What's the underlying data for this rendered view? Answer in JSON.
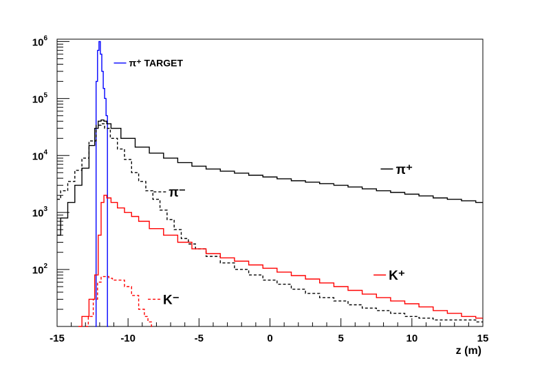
{
  "chart_data": {
    "type": "line",
    "title": "",
    "xlabel": "z (m)",
    "ylabel": "",
    "xlim": [
      -15,
      15
    ],
    "ylim": [
      10,
      1100000
    ],
    "yscale": "log",
    "grid": false,
    "x_ticks": [
      "-15",
      "-10",
      "-5",
      "0",
      "5",
      "10",
      "15"
    ],
    "y_ticks": [
      {
        "base": "10",
        "exp": "2"
      },
      {
        "base": "10",
        "exp": "3"
      },
      {
        "base": "10",
        "exp": "4"
      },
      {
        "base": "10",
        "exp": "5"
      },
      {
        "base": "10",
        "exp": "6"
      }
    ],
    "series": [
      {
        "name": "π⁺ TARGET",
        "color": "#0000ff",
        "style": "solid",
        "x": [
          -12.3,
          -12.2,
          -12.1,
          -12.0,
          -11.9,
          -11.8,
          -11.7,
          -11.6,
          -11.5,
          -11.4
        ],
        "y": [
          10,
          200000,
          700000,
          1000000,
          600000,
          300000,
          150000,
          100000,
          50000,
          10
        ]
      },
      {
        "name": "π⁺",
        "color": "#000000",
        "style": "solid",
        "x": [
          -15,
          -14.5,
          -14,
          -13.5,
          -13,
          -12.5,
          -12.2,
          -12,
          -11.8,
          -11.6,
          -11.4,
          -11,
          -10,
          -9,
          -8,
          -7,
          -6,
          -5,
          -4,
          -3,
          -2,
          -1,
          0,
          1,
          2,
          3,
          4,
          5,
          6,
          7,
          8,
          9,
          10,
          11,
          12,
          13,
          14,
          15
        ],
        "y": [
          400,
          800,
          1500,
          3000,
          6000,
          15000,
          30000,
          40000,
          42000,
          40000,
          36000,
          30000,
          20000,
          14000,
          11000,
          9000,
          7500,
          6500,
          5800,
          5300,
          4900,
          4500,
          4200,
          3900,
          3600,
          3400,
          3200,
          3000,
          2800,
          2600,
          2400,
          2250,
          2100,
          1950,
          1800,
          1700,
          1600,
          1500
        ]
      },
      {
        "name": "π⁻",
        "color": "#000000",
        "style": "dashed",
        "x": [
          -15,
          -14.5,
          -14,
          -13.5,
          -13,
          -12.5,
          -12,
          -11.8,
          -11.5,
          -11,
          -10.5,
          -10,
          -9.5,
          -9,
          -8.5,
          -8,
          -7.5,
          -7,
          -6.5,
          -6,
          -5.5,
          -5,
          -4,
          -3,
          -2,
          -1,
          0,
          1,
          2,
          3,
          4,
          5,
          6,
          7,
          8,
          9,
          10,
          11,
          12,
          13,
          14,
          15
        ],
        "y": [
          1700,
          2400,
          3500,
          5500,
          9000,
          18000,
          34000,
          36000,
          30000,
          20000,
          13000,
          8500,
          5000,
          3500,
          2400,
          1700,
          1100,
          750,
          500,
          350,
          280,
          230,
          170,
          130,
          100,
          80,
          65,
          55,
          45,
          38,
          32,
          28,
          24,
          21,
          19,
          17,
          15,
          14,
          13,
          13,
          13,
          12
        ]
      },
      {
        "name": "K⁺",
        "color": "#ff0000",
        "style": "solid",
        "x": [
          -13.5,
          -13,
          -12.5,
          -12.2,
          -12,
          -11.8,
          -11.6,
          -11.4,
          -11,
          -10.5,
          -10,
          -9.5,
          -9,
          -8,
          -7,
          -6,
          -5,
          -4,
          -3,
          -2,
          -1,
          0,
          1,
          2,
          3,
          4,
          5,
          6,
          7,
          8,
          9,
          10,
          11,
          12,
          13,
          14,
          15
        ],
        "y": [
          10,
          15,
          30,
          80,
          400,
          1500,
          2000,
          1800,
          1500,
          1200,
          1000,
          850,
          700,
          520,
          400,
          300,
          230,
          190,
          160,
          140,
          120,
          105,
          90,
          78,
          68,
          58,
          50,
          43,
          37,
          32,
          28,
          25,
          22,
          19,
          17,
          15,
          14
        ]
      },
      {
        "name": "K⁻",
        "color": "#ff0000",
        "style": "dashed",
        "x": [
          -13,
          -12.6,
          -12.3,
          -12,
          -11.8,
          -11.5,
          -11.2,
          -11,
          -10.5,
          -10,
          -9.5,
          -9,
          -8.7,
          -8.5,
          -8.2
        ],
        "y": [
          10,
          15,
          30,
          60,
          75,
          75,
          70,
          65,
          65,
          50,
          35,
          20,
          15,
          12,
          10
        ]
      }
    ],
    "legend": [
      {
        "label": "π⁺ TARGET",
        "color": "#0000ff",
        "style": "solid",
        "x": -11.0,
        "y": 420000
      },
      {
        "label": "π⁺",
        "color": "#000000",
        "style": "solid",
        "x": 7.8,
        "y": 5800
      },
      {
        "label": "π⁻",
        "color": "#000000",
        "style": "dashed",
        "x": -8.2,
        "y": 2300
      },
      {
        "label": "K⁺",
        "color": "#ff0000",
        "style": "solid",
        "x": 7.3,
        "y": 80
      },
      {
        "label": "K⁻",
        "color": "#ff0000",
        "style": "dashed",
        "x": -8.6,
        "y": 30
      }
    ]
  }
}
